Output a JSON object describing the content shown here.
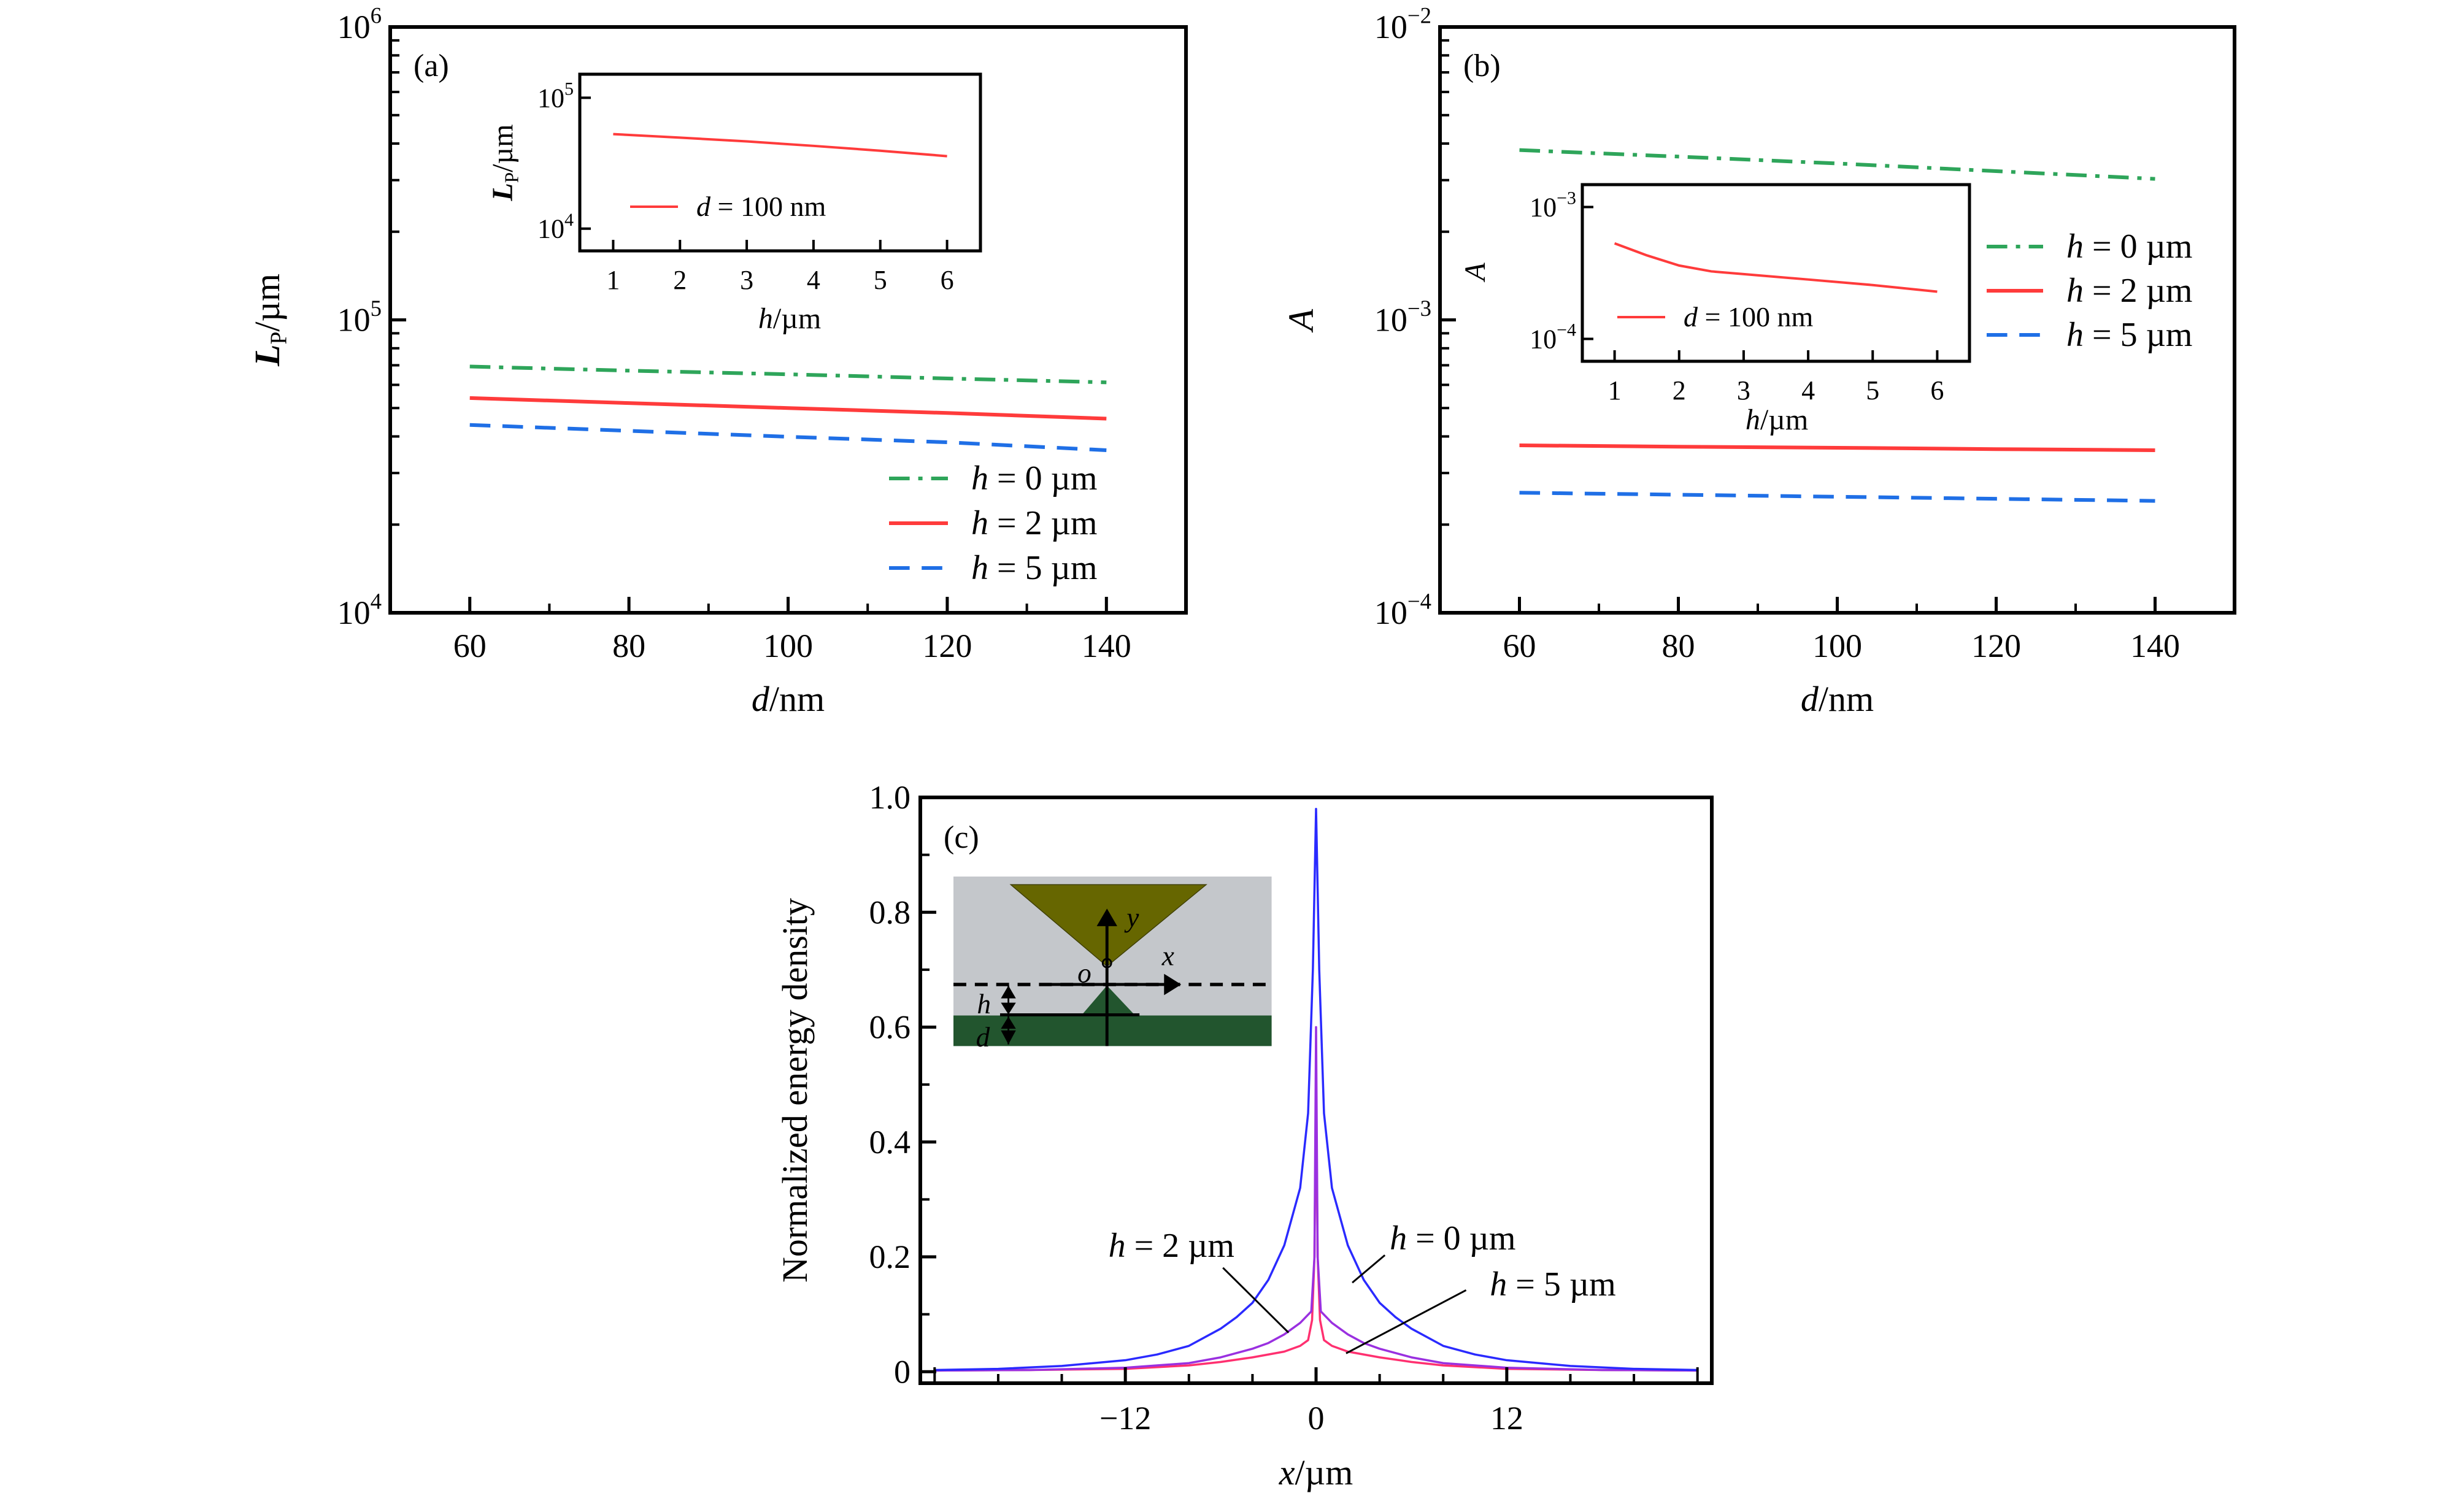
{
  "colors": {
    "green": "#2ea55a",
    "red": "#ff3b3b",
    "blue": "#1f6fe6",
    "c_blue": "#2a2aff",
    "c_purple": "#9a30e0",
    "c_pink": "#ff3070",
    "diagram_bg": "#c4c7cb",
    "diagram_tip": "#666600",
    "diagram_substrate": "#22552e"
  },
  "chart_data": [
    {
      "id": "a",
      "type": "line",
      "panel_label": "(a)",
      "xlabel": {
        "var": "d",
        "unit": "/nm"
      },
      "ylabel": {
        "var": "L",
        "sub": "P",
        "unit": "/µm"
      },
      "xlim": [
        50,
        150
      ],
      "ylog": true,
      "ylim_exp": [
        4,
        6
      ],
      "xticks": [
        60,
        80,
        100,
        120,
        140
      ],
      "xminor": [
        70,
        90,
        110,
        130
      ],
      "yticks": [
        {
          "base": "10",
          "exp": "4",
          "v": 4
        },
        {
          "base": "10",
          "exp": "5",
          "v": 5
        },
        {
          "base": "10",
          "exp": "6",
          "v": 6
        }
      ],
      "legend_position": "bottom-right",
      "series": [
        {
          "name": "h = 0 µm",
          "label": {
            "var": "h",
            "rest": " = 0 µm"
          },
          "color": "green",
          "style": "dashdot",
          "x": [
            60,
            80,
            100,
            120,
            140
          ],
          "y": [
            69300,
            67100,
            65200,
            63100,
            61200
          ]
        },
        {
          "name": "h = 2 µm",
          "label": {
            "var": "h",
            "rest": " = 2 µm"
          },
          "color": "red",
          "style": "solid",
          "x": [
            60,
            80,
            100,
            120,
            140
          ],
          "y": [
            54100,
            52000,
            50000,
            48100,
            46000
          ]
        },
        {
          "name": "h = 5 µm",
          "label": {
            "var": "h",
            "rest": " = 5 µm"
          },
          "color": "blue",
          "style": "dashed",
          "x": [
            60,
            80,
            100,
            120,
            140
          ],
          "y": [
            43800,
            41800,
            39900,
            38200,
            35900
          ]
        }
      ],
      "inset": {
        "xlabel": {
          "var": "h",
          "unit": "/µm"
        },
        "ylabel": {
          "var": "L",
          "sub": "P",
          "unit": "/µm"
        },
        "xlim": [
          0.5,
          6.5
        ],
        "ylim_exp": [
          3.83,
          5.18
        ],
        "xticks": [
          1,
          2,
          3,
          4,
          5,
          6
        ],
        "yticks": [
          {
            "base": "10",
            "exp": "4",
            "v": 4
          },
          {
            "base": "10",
            "exp": "5",
            "v": 5
          }
        ],
        "series": [
          {
            "name": "d = 100 nm",
            "label": {
              "var": "d",
              "rest": " = 100 nm"
            },
            "color": "red",
            "style": "solid",
            "x": [
              1,
              2,
              3,
              4,
              5,
              6
            ],
            "y": [
              52800,
              49600,
              46400,
              42900,
              39400,
              35800
            ]
          }
        ]
      }
    },
    {
      "id": "b",
      "type": "line",
      "panel_label": "(b)",
      "xlabel": {
        "var": "d",
        "unit": "/nm"
      },
      "ylabel": {
        "var": "A",
        "sub": "",
        "unit": ""
      },
      "xlim": [
        50,
        150
      ],
      "ylog": true,
      "ylim_exp": [
        -4,
        -2
      ],
      "xticks": [
        60,
        80,
        100,
        120,
        140
      ],
      "xminor": [
        70,
        90,
        110,
        130
      ],
      "yticks": [
        {
          "base": "10",
          "exp": "−4",
          "v": -4
        },
        {
          "base": "10",
          "exp": "−3",
          "v": -3
        },
        {
          "base": "10",
          "exp": "−2",
          "v": -2
        }
      ],
      "legend_position": "right",
      "series": [
        {
          "name": "h = 0 µm",
          "label": {
            "var": "h",
            "rest": " = 0 µm"
          },
          "color": "green",
          "style": "dashdot",
          "x": [
            60,
            80,
            100,
            120,
            140
          ],
          "y": [
            0.0038,
            0.00361,
            0.00342,
            0.00322,
            0.00303
          ]
        },
        {
          "name": "h = 2 µm",
          "label": {
            "var": "h",
            "rest": " = 2 µm"
          },
          "color": "red",
          "style": "solid",
          "x": [
            60,
            80,
            100,
            120,
            140
          ],
          "y": [
            0.000373,
            0.000369,
            0.000366,
            0.000362,
            0.000359
          ]
        },
        {
          "name": "h = 5 µm",
          "label": {
            "var": "h",
            "rest": " = 5 µm"
          },
          "color": "blue",
          "style": "dashed",
          "x": [
            60,
            80,
            100,
            120,
            140
          ],
          "y": [
            0.000257,
            0.000253,
            0.000249,
            0.000245,
            0.000241
          ]
        }
      ],
      "inset": {
        "xlabel": {
          "var": "h",
          "unit": "/µm"
        },
        "ylabel": {
          "var": "A",
          "sub": "",
          "unit": ""
        },
        "xlim": [
          0.5,
          6.5
        ],
        "ylim_exp": [
          -4.17,
          -2.83
        ],
        "xticks": [
          1,
          2,
          3,
          4,
          5,
          6
        ],
        "yticks": [
          {
            "base": "10",
            "exp": "−4",
            "v": -4
          },
          {
            "base": "10",
            "exp": "−3",
            "v": -3
          }
        ],
        "series": [
          {
            "name": "d = 100 nm",
            "label": {
              "var": "d",
              "rest": " = 100 nm"
            },
            "color": "red",
            "style": "solid",
            "x": [
              1,
              1.5,
              2,
              2.5,
              3,
              4,
              5,
              6
            ],
            "y": [
              0.00053,
              0.00043,
              0.00036,
              0.000325,
              0.00031,
              0.000282,
              0.000256,
              0.000228
            ]
          }
        ]
      }
    },
    {
      "id": "c",
      "type": "line",
      "panel_label": "(c)",
      "xlabel": {
        "var": "x",
        "unit": "/µm"
      },
      "ylabel": {
        "text": "Normalized energy density"
      },
      "xlim": [
        -24.9,
        24.9
      ],
      "ylim": [
        -0.02,
        1.0
      ],
      "xticks": [
        {
          "v": -12,
          "label": "−12"
        },
        {
          "v": 0,
          "label": "0"
        },
        {
          "v": 12,
          "label": "12"
        }
      ],
      "xminor": [
        -24,
        -20,
        -16,
        -8,
        -4,
        4,
        8,
        16,
        20,
        24
      ],
      "yticks": [
        {
          "v": 0,
          "label": "0"
        },
        {
          "v": 0.2,
          "label": "0.2"
        },
        {
          "v": 0.4,
          "label": "0.4"
        },
        {
          "v": 0.6,
          "label": "0.6"
        },
        {
          "v": 0.8,
          "label": "0.8"
        },
        {
          "v": 1.0,
          "label": "1.0"
        }
      ],
      "yminor": [
        0.1,
        0.3,
        0.5,
        0.7,
        0.9
      ],
      "series": [
        {
          "name": "h = 0 µm",
          "color": "c_blue",
          "x": [
            0,
            0.2,
            0.5,
            1,
            2,
            3,
            4,
            5,
            6,
            8,
            10,
            12,
            16,
            20,
            24
          ],
          "y": [
            0.98,
            0.7,
            0.45,
            0.32,
            0.22,
            0.16,
            0.12,
            0.095,
            0.075,
            0.045,
            0.03,
            0.02,
            0.01,
            0.005,
            0.003
          ]
        },
        {
          "name": "h = 2 µm",
          "color": "c_purple",
          "x": [
            0,
            0.1,
            0.3,
            1,
            2,
            3,
            4,
            6,
            8,
            12,
            18,
            24
          ],
          "y": [
            0.6,
            0.2,
            0.105,
            0.085,
            0.065,
            0.05,
            0.04,
            0.025,
            0.015,
            0.007,
            0.003,
            0.002
          ]
        },
        {
          "name": "h = 5 µm",
          "color": "c_pink",
          "x": [
            0,
            0.1,
            0.25,
            0.5,
            1,
            2,
            4,
            6,
            8,
            12,
            18,
            24
          ],
          "y": [
            0.5,
            0.2,
            0.09,
            0.055,
            0.045,
            0.035,
            0.025,
            0.017,
            0.011,
            0.005,
            0.003,
            0.002
          ]
        }
      ],
      "annotations": [
        {
          "var": "h",
          "rest": " = 2 µm",
          "text_at": [
            -9.1,
            0.2
          ],
          "line": [
            [
              -5.86,
              0.181
            ],
            [
              -1.73,
              0.068
            ]
          ]
        },
        {
          "var": "h",
          "rest": " = 0 µm",
          "text_at": [
            8.6,
            0.213
          ],
          "line": [
            [
              4.33,
              0.203
            ],
            [
              2.28,
              0.155
            ]
          ]
        },
        {
          "var": "h",
          "rest": " = 5 µm",
          "text_at": [
            14.9,
            0.133
          ],
          "line": [
            [
              9.44,
              0.142
            ],
            [
              1.89,
              0.032
            ]
          ]
        }
      ],
      "diagram": {
        "labels": {
          "y": "y",
          "x": "x",
          "o": "o",
          "h": "h",
          "d": "d"
        }
      }
    }
  ]
}
